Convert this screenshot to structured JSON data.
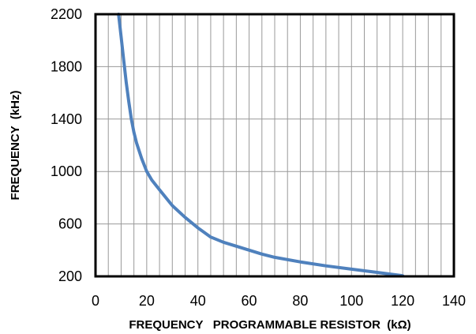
{
  "chart_data": {
    "type": "line",
    "title": "",
    "xlabel": "FREQUENCY   PROGRAMMABLE RESISTOR  (kΩ)",
    "ylabel": "FREQUENCY  (kHz)",
    "xlim": [
      0,
      140
    ],
    "ylim": [
      200,
      2200
    ],
    "xticks": [
      0,
      20,
      40,
      60,
      80,
      100,
      120,
      140
    ],
    "yticks": [
      200,
      600,
      1000,
      1400,
      1800,
      2200
    ],
    "x_minor_step": 5,
    "grid": true,
    "legend": "none",
    "series": [
      {
        "color": "#4f81bd",
        "points": [
          [
            9,
            2200
          ],
          [
            10,
            2030
          ],
          [
            11,
            1850
          ],
          [
            12,
            1680
          ],
          [
            13,
            1530
          ],
          [
            14,
            1400
          ],
          [
            15,
            1300
          ],
          [
            16,
            1220
          ],
          [
            18,
            1100
          ],
          [
            20,
            1000
          ],
          [
            22,
            935
          ],
          [
            25,
            860
          ],
          [
            30,
            740
          ],
          [
            35,
            650
          ],
          [
            40,
            570
          ],
          [
            45,
            500
          ],
          [
            50,
            460
          ],
          [
            55,
            430
          ],
          [
            60,
            400
          ],
          [
            65,
            370
          ],
          [
            70,
            345
          ],
          [
            80,
            310
          ],
          [
            90,
            280
          ],
          [
            100,
            255
          ],
          [
            110,
            230
          ],
          [
            120,
            205
          ]
        ]
      }
    ]
  }
}
